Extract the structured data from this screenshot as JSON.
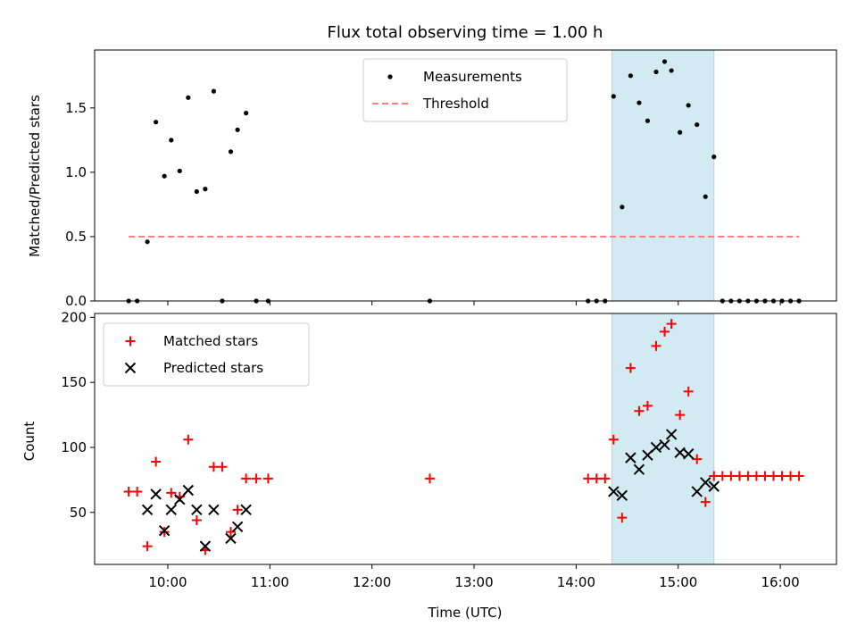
{
  "chart_data": [
    {
      "type": "scatter",
      "title": "Flux total observing time = 1.00 h",
      "xlabel": "",
      "ylabel": "Matched/Predicted stars",
      "xlim": [
        "09:17",
        "16:33"
      ],
      "ylim": [
        0,
        1.95
      ],
      "x_ticks": [
        "10:00",
        "11:00",
        "12:00",
        "13:00",
        "14:00",
        "15:00",
        "16:00"
      ],
      "y_ticks": [
        "0.0",
        "0.5",
        "1.0",
        "1.5"
      ],
      "shaded_span": {
        "from": "14:21",
        "to": "15:21",
        "color": "#add8e6"
      },
      "legend_position": "upper center",
      "series": [
        {
          "name": "Measurements",
          "color": "#000000",
          "marker": "dot",
          "points": [
            [
              "09:37",
              0.0
            ],
            [
              "09:42",
              0.0
            ],
            [
              "09:48",
              0.46
            ],
            [
              "09:53",
              1.39
            ],
            [
              "09:58",
              0.97
            ],
            [
              "10:02",
              1.25
            ],
            [
              "10:07",
              1.01
            ],
            [
              "10:12",
              1.58
            ],
            [
              "10:17",
              0.85
            ],
            [
              "10:22",
              0.87
            ],
            [
              "10:27",
              1.63
            ],
            [
              "10:32",
              0.0
            ],
            [
              "10:37",
              1.16
            ],
            [
              "10:41",
              1.33
            ],
            [
              "10:46",
              1.46
            ],
            [
              "10:52",
              0.0
            ],
            [
              "10:59",
              0.0
            ],
            [
              "12:34",
              0.0
            ],
            [
              "14:07",
              0.0
            ],
            [
              "14:12",
              0.0
            ],
            [
              "14:17",
              0.0
            ],
            [
              "14:22",
              1.59
            ],
            [
              "14:27",
              0.73
            ],
            [
              "14:32",
              1.75
            ],
            [
              "14:37",
              1.54
            ],
            [
              "14:42",
              1.4
            ],
            [
              "14:47",
              1.78
            ],
            [
              "14:52",
              1.86
            ],
            [
              "14:56",
              1.79
            ],
            [
              "15:01",
              1.31
            ],
            [
              "15:06",
              1.52
            ],
            [
              "15:11",
              1.37
            ],
            [
              "15:16",
              0.81
            ],
            [
              "15:21",
              1.12
            ],
            [
              "15:26",
              0.0
            ],
            [
              "15:31",
              0.0
            ],
            [
              "15:36",
              0.0
            ],
            [
              "15:41",
              0.0
            ],
            [
              "15:46",
              0.0
            ],
            [
              "15:51",
              0.0
            ],
            [
              "15:56",
              0.0
            ],
            [
              "16:01",
              0.0
            ],
            [
              "16:06",
              0.0
            ],
            [
              "16:11",
              0.0
            ]
          ]
        },
        {
          "name": "Threshold",
          "color": "#ff7f7f",
          "marker": "dashed-line",
          "points": [
            [
              "09:37",
              0.5
            ],
            [
              "16:11",
              0.5
            ]
          ]
        }
      ]
    },
    {
      "type": "scatter",
      "title": "",
      "xlabel": "Time (UTC)",
      "ylabel": "Count",
      "xlim": [
        "09:17",
        "16:33"
      ],
      "ylim": [
        10,
        203
      ],
      "x_ticks": [
        "10:00",
        "11:00",
        "12:00",
        "13:00",
        "14:00",
        "15:00",
        "16:00"
      ],
      "y_ticks": [
        "50",
        "100",
        "150",
        "200"
      ],
      "shaded_span": {
        "from": "14:21",
        "to": "15:21",
        "color": "#add8e6"
      },
      "legend_position": "upper left",
      "series": [
        {
          "name": "Matched stars",
          "color": "#ff0000",
          "marker": "plus",
          "points": [
            [
              "09:37",
              66
            ],
            [
              "09:42",
              66
            ],
            [
              "09:48",
              24
            ],
            [
              "09:53",
              89
            ],
            [
              "09:58",
              35
            ],
            [
              "10:02",
              65
            ],
            [
              "10:07",
              62
            ],
            [
              "10:12",
              106
            ],
            [
              "10:17",
              44
            ],
            [
              "10:22",
              21
            ],
            [
              "10:27",
              85
            ],
            [
              "10:32",
              85
            ],
            [
              "10:37",
              35
            ],
            [
              "10:41",
              52
            ],
            [
              "10:46",
              76
            ],
            [
              "10:52",
              76
            ],
            [
              "10:59",
              76
            ],
            [
              "12:34",
              76
            ],
            [
              "14:07",
              76
            ],
            [
              "14:12",
              76
            ],
            [
              "14:17",
              76
            ],
            [
              "14:22",
              106
            ],
            [
              "14:27",
              46
            ],
            [
              "14:32",
              161
            ],
            [
              "14:37",
              128
            ],
            [
              "14:42",
              132
            ],
            [
              "14:47",
              178
            ],
            [
              "14:52",
              189
            ],
            [
              "14:56",
              195
            ],
            [
              "15:01",
              125
            ],
            [
              "15:06",
              143
            ],
            [
              "15:11",
              91
            ],
            [
              "15:16",
              58
            ],
            [
              "15:21",
              78
            ],
            [
              "15:26",
              78
            ],
            [
              "15:31",
              78
            ],
            [
              "15:36",
              78
            ],
            [
              "15:41",
              78
            ],
            [
              "15:46",
              78
            ],
            [
              "15:51",
              78
            ],
            [
              "15:56",
              78
            ],
            [
              "16:01",
              78
            ],
            [
              "16:06",
              78
            ],
            [
              "16:11",
              78
            ]
          ]
        },
        {
          "name": "Predicted stars",
          "color": "#000000",
          "marker": "x",
          "points": [
            [
              "09:48",
              52
            ],
            [
              "09:53",
              64
            ],
            [
              "09:58",
              36
            ],
            [
              "10:02",
              52
            ],
            [
              "10:07",
              60
            ],
            [
              "10:12",
              67
            ],
            [
              "10:17",
              52
            ],
            [
              "10:22",
              24
            ],
            [
              "10:27",
              52
            ],
            [
              "10:37",
              30
            ],
            [
              "10:41",
              39
            ],
            [
              "10:46",
              52
            ],
            [
              "14:22",
              66
            ],
            [
              "14:27",
              63
            ],
            [
              "14:32",
              92
            ],
            [
              "14:37",
              83
            ],
            [
              "14:42",
              94
            ],
            [
              "14:47",
              100
            ],
            [
              "14:52",
              102
            ],
            [
              "14:56",
              110
            ],
            [
              "15:01",
              96
            ],
            [
              "15:06",
              95
            ],
            [
              "15:11",
              66
            ],
            [
              "15:16",
              73
            ],
            [
              "15:21",
              70
            ]
          ]
        }
      ]
    }
  ]
}
